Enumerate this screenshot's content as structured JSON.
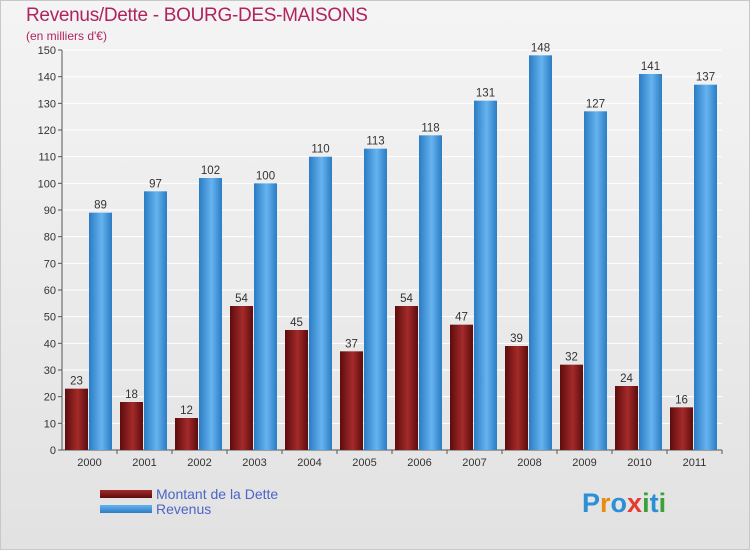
{
  "title": "Revenus/Dette - BOURG-DES-MAISONS",
  "subtitle": "(en milliers d'€)",
  "logo": {
    "text": "Proxiti",
    "letters": [
      {
        "ch": "P",
        "color": "#2d8fd6"
      },
      {
        "ch": "r",
        "color": "#e98b12"
      },
      {
        "ch": "o",
        "color": "#2d8fd6"
      },
      {
        "ch": "x",
        "color": "#e63b2e"
      },
      {
        "ch": "i",
        "color": "#3aa23a"
      },
      {
        "ch": "t",
        "color": "#2d8fd6"
      },
      {
        "ch": "i",
        "color": "#3aa23a"
      }
    ]
  },
  "chart_data": {
    "type": "bar",
    "categories": [
      "2000",
      "2001",
      "2002",
      "2003",
      "2004",
      "2005",
      "2006",
      "2007",
      "2008",
      "2009",
      "2010",
      "2011"
    ],
    "series": [
      {
        "name": "Montant de la Dette",
        "color": "#8a1a1a",
        "values": [
          23,
          18,
          12,
          54,
          45,
          37,
          54,
          47,
          39,
          32,
          24,
          16
        ]
      },
      {
        "name": "Revenus",
        "color": "#3b93dc",
        "values": [
          89,
          97,
          102,
          100,
          110,
          113,
          118,
          131,
          148,
          127,
          141,
          137
        ]
      }
    ],
    "ylim": [
      0,
      150
    ],
    "yticks": [
      0,
      10,
      20,
      30,
      40,
      50,
      60,
      70,
      80,
      90,
      100,
      110,
      120,
      130,
      140,
      150
    ],
    "grid": true,
    "legend_position": "bottom-left"
  }
}
